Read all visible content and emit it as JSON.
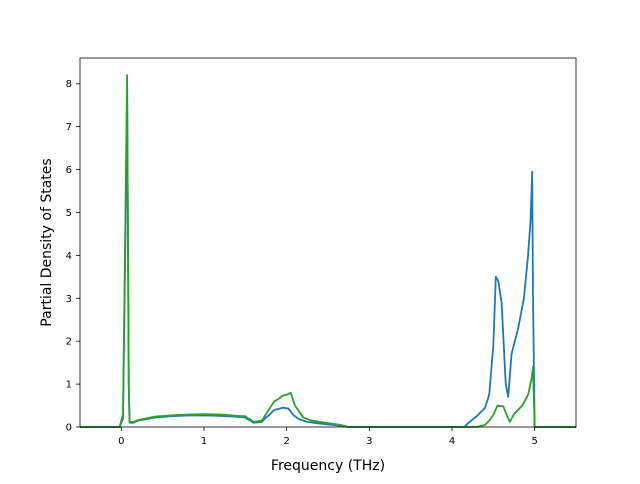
{
  "chart_data": {
    "type": "line",
    "title": "",
    "xlabel": "Frequency (THz)",
    "ylabel": "Partial Density of States",
    "xlim": [
      -0.5,
      5.5
    ],
    "ylim": [
      0,
      8.6
    ],
    "xticks": [
      0,
      1,
      2,
      3,
      4,
      5
    ],
    "yticks": [
      0,
      1,
      2,
      3,
      4,
      5,
      6,
      7,
      8
    ],
    "grid": false,
    "legend": "none",
    "series": [
      {
        "color": "#1f77b4",
        "points": [
          [
            -0.5,
            0
          ],
          [
            -0.02,
            0
          ],
          [
            0.02,
            0.2
          ],
          [
            0.05,
            4.5
          ],
          [
            0.07,
            7.8
          ],
          [
            0.09,
            0.9
          ],
          [
            0.1,
            0.1
          ],
          [
            0.15,
            0.1
          ],
          [
            0.2,
            0.15
          ],
          [
            0.3,
            0.18
          ],
          [
            0.4,
            0.22
          ],
          [
            0.6,
            0.25
          ],
          [
            0.8,
            0.27
          ],
          [
            1.0,
            0.27
          ],
          [
            1.2,
            0.26
          ],
          [
            1.4,
            0.24
          ],
          [
            1.5,
            0.22
          ],
          [
            1.6,
            0.1
          ],
          [
            1.7,
            0.12
          ],
          [
            1.75,
            0.22
          ],
          [
            1.8,
            0.3
          ],
          [
            1.85,
            0.4
          ],
          [
            1.9,
            0.42
          ],
          [
            1.95,
            0.45
          ],
          [
            2.02,
            0.43
          ],
          [
            2.08,
            0.28
          ],
          [
            2.15,
            0.18
          ],
          [
            2.25,
            0.12
          ],
          [
            2.4,
            0.08
          ],
          [
            2.6,
            0.04
          ],
          [
            2.75,
            0
          ],
          [
            4.15,
            0
          ],
          [
            4.2,
            0.1
          ],
          [
            4.3,
            0.25
          ],
          [
            4.4,
            0.45
          ],
          [
            4.45,
            0.75
          ],
          [
            4.5,
            1.9
          ],
          [
            4.53,
            3.5
          ],
          [
            4.56,
            3.4
          ],
          [
            4.6,
            2.9
          ],
          [
            4.65,
            1.0
          ],
          [
            4.68,
            0.7
          ],
          [
            4.72,
            1.7
          ],
          [
            4.8,
            2.3
          ],
          [
            4.87,
            3.0
          ],
          [
            4.92,
            4.0
          ],
          [
            4.95,
            4.8
          ],
          [
            4.97,
            5.95
          ],
          [
            4.98,
            3.0
          ],
          [
            5.0,
            0
          ],
          [
            5.5,
            0
          ]
        ]
      },
      {
        "color": "#2ca02c",
        "points": [
          [
            -0.5,
            0
          ],
          [
            -0.02,
            0
          ],
          [
            0.02,
            0.3
          ],
          [
            0.05,
            5.0
          ],
          [
            0.07,
            8.2
          ],
          [
            0.09,
            1.0
          ],
          [
            0.1,
            0.12
          ],
          [
            0.15,
            0.12
          ],
          [
            0.2,
            0.16
          ],
          [
            0.3,
            0.2
          ],
          [
            0.4,
            0.24
          ],
          [
            0.6,
            0.27
          ],
          [
            0.8,
            0.29
          ],
          [
            1.0,
            0.3
          ],
          [
            1.2,
            0.29
          ],
          [
            1.4,
            0.26
          ],
          [
            1.5,
            0.25
          ],
          [
            1.6,
            0.12
          ],
          [
            1.7,
            0.15
          ],
          [
            1.75,
            0.3
          ],
          [
            1.8,
            0.45
          ],
          [
            1.85,
            0.6
          ],
          [
            1.9,
            0.65
          ],
          [
            1.95,
            0.73
          ],
          [
            2.0,
            0.75
          ],
          [
            2.05,
            0.8
          ],
          [
            2.1,
            0.5
          ],
          [
            2.2,
            0.22
          ],
          [
            2.3,
            0.15
          ],
          [
            2.5,
            0.09
          ],
          [
            2.65,
            0.05
          ],
          [
            2.75,
            0
          ],
          [
            4.3,
            0
          ],
          [
            4.4,
            0.05
          ],
          [
            4.45,
            0.15
          ],
          [
            4.5,
            0.28
          ],
          [
            4.55,
            0.5
          ],
          [
            4.62,
            0.48
          ],
          [
            4.68,
            0.2
          ],
          [
            4.7,
            0.12
          ],
          [
            4.75,
            0.3
          ],
          [
            4.85,
            0.5
          ],
          [
            4.92,
            0.75
          ],
          [
            4.96,
            1.1
          ],
          [
            4.98,
            1.4
          ],
          [
            5.0,
            0
          ],
          [
            5.5,
            0
          ]
        ]
      }
    ]
  }
}
